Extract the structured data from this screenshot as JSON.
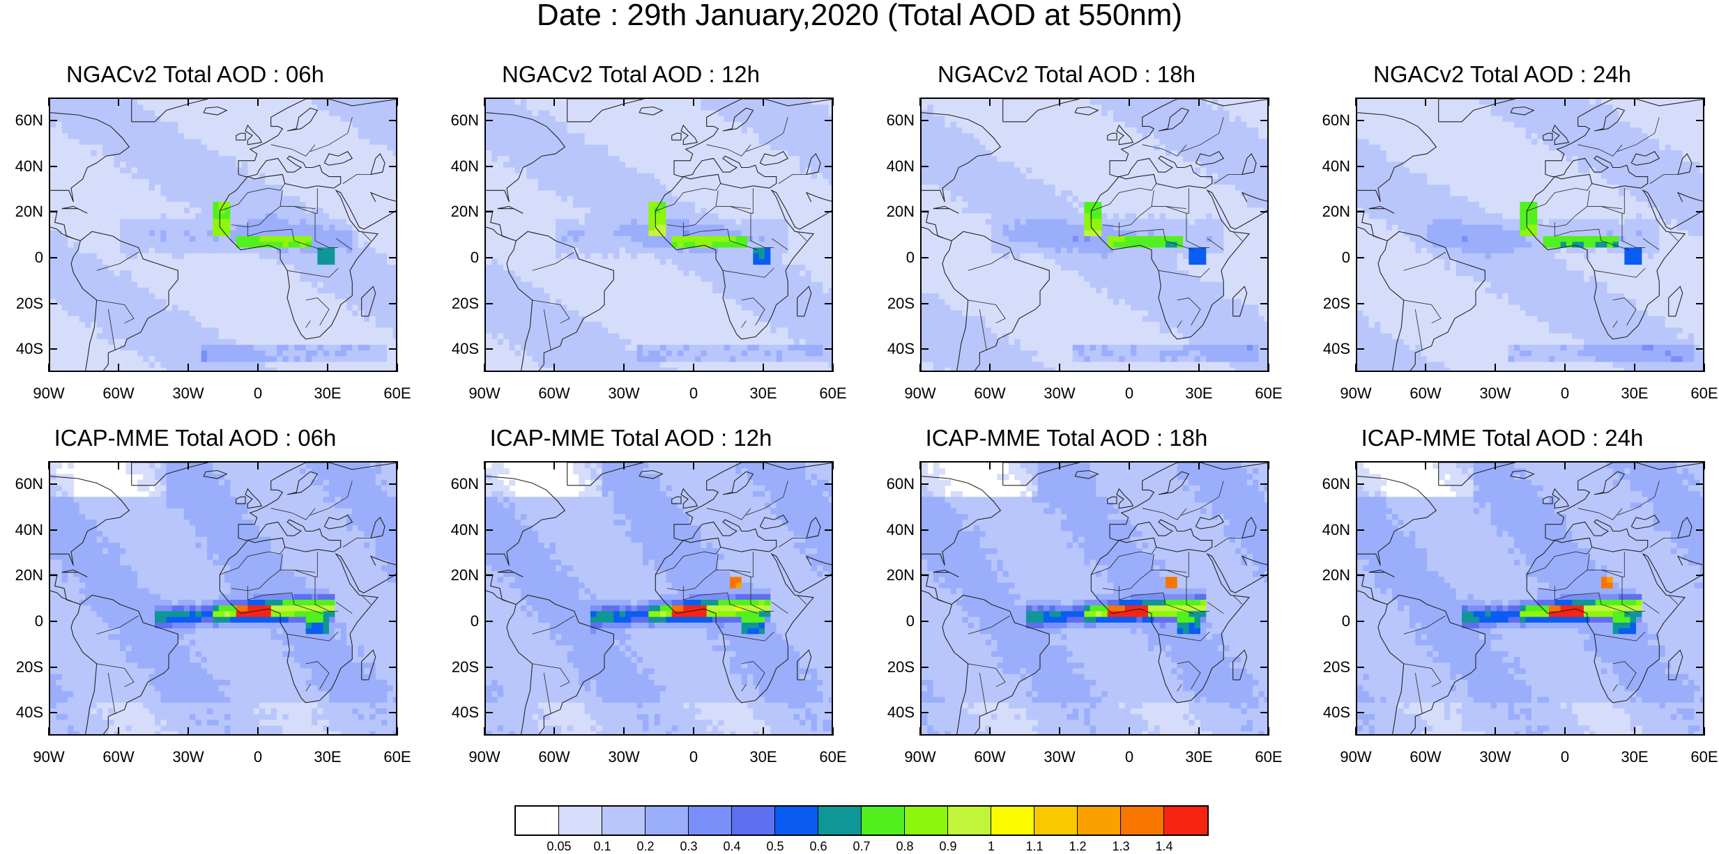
{
  "title": "Date : 29th January,2020 (Total AOD at 550nm)",
  "lat_labels": [
    "60N",
    "40N",
    "20N",
    "0",
    "20S",
    "40S"
  ],
  "lon_labels": [
    "90W",
    "60W",
    "30W",
    "0",
    "30E",
    "60E"
  ],
  "panels": [
    {
      "title": "NGACv2 Total AOD : 06h",
      "model": "NGACv2",
      "hour": "06h",
      "row": 0,
      "col": 0
    },
    {
      "title": "NGACv2 Total AOD : 12h",
      "model": "NGACv2",
      "hour": "12h",
      "row": 0,
      "col": 1
    },
    {
      "title": "NGACv2 Total AOD : 18h",
      "model": "NGACv2",
      "hour": "18h",
      "row": 0,
      "col": 2
    },
    {
      "title": "NGACv2 Total AOD : 24h",
      "model": "NGACv2",
      "hour": "24h",
      "row": 0,
      "col": 3
    },
    {
      "title": "ICAP-MME Total AOD : 06h",
      "model": "ICAP-MME",
      "hour": "06h",
      "row": 1,
      "col": 0
    },
    {
      "title": "ICAP-MME Total AOD : 12h",
      "model": "ICAP-MME",
      "hour": "12h",
      "row": 1,
      "col": 1
    },
    {
      "title": "ICAP-MME Total AOD : 18h",
      "model": "ICAP-MME",
      "hour": "18h",
      "row": 1,
      "col": 2
    },
    {
      "title": "ICAP-MME Total AOD : 24h",
      "model": "ICAP-MME",
      "hour": "24h",
      "row": 1,
      "col": 3
    }
  ],
  "colorbar": {
    "colors": [
      "#ffffff",
      "#d6ddfb",
      "#b9c6fb",
      "#9aaefc",
      "#7b8ffa",
      "#5e6ff0",
      "#0a5cf2",
      "#0f9696",
      "#52f01e",
      "#8ef50c",
      "#c1f53a",
      "#fafa00",
      "#fac800",
      "#faa000",
      "#f87600",
      "#f82412"
    ],
    "labels": [
      "0.05",
      "0.1",
      "0.2",
      "0.3",
      "0.4",
      "0.5",
      "0.6",
      "0.7",
      "0.8",
      "0.9",
      "1",
      "1.1",
      "1.2",
      "1.3",
      "1.4"
    ]
  }
}
